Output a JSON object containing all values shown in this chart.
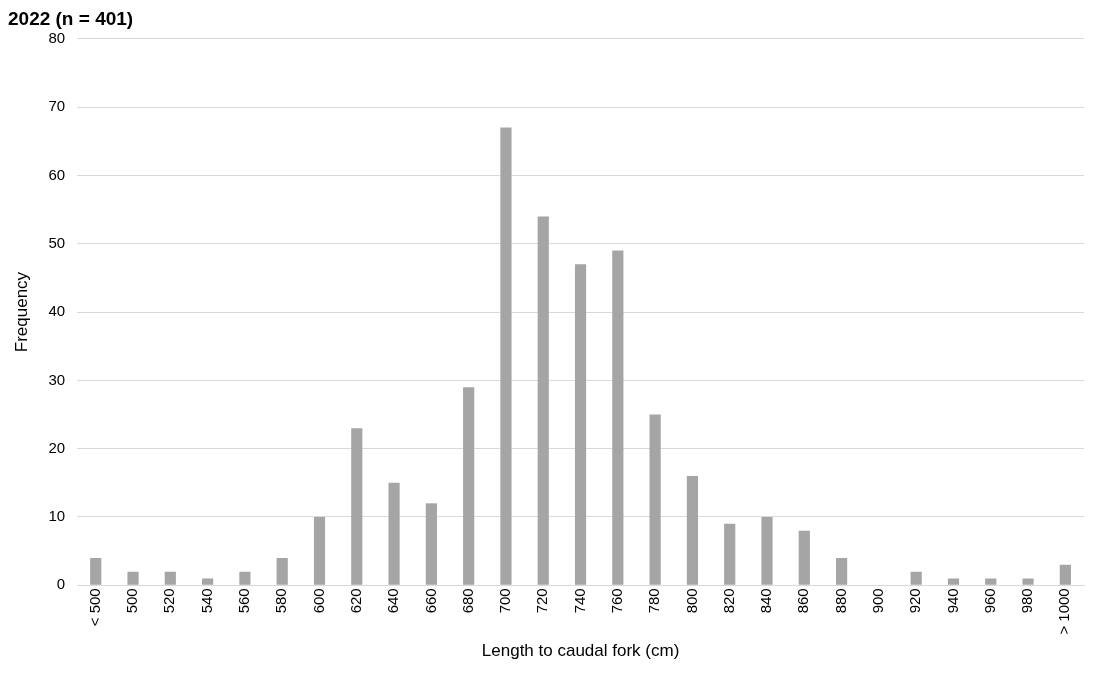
{
  "chart_data": {
    "type": "bar",
    "title": "2022 (n = 401)",
    "xlabel": "Length to caudal fork (cm)",
    "ylabel": "Frequency",
    "categories": [
      "< 500",
      "500",
      "520",
      "540",
      "560",
      "580",
      "600",
      "620",
      "640",
      "660",
      "680",
      "700",
      "720",
      "740",
      "760",
      "780",
      "800",
      "820",
      "840",
      "860",
      "880",
      "900",
      "920",
      "940",
      "960",
      "980",
      "> 1000"
    ],
    "values": [
      4,
      2,
      2,
      1,
      2,
      4,
      10,
      23,
      15,
      12,
      29,
      67,
      54,
      47,
      49,
      25,
      16,
      9,
      10,
      8,
      4,
      0,
      2,
      1,
      1,
      1,
      3
    ],
    "color": "#a5a5a5",
    "ylim": [
      0,
      80
    ],
    "yticks": [
      0,
      10,
      20,
      30,
      40,
      50,
      60,
      70,
      80
    ],
    "grid": "y",
    "legend": false
  }
}
